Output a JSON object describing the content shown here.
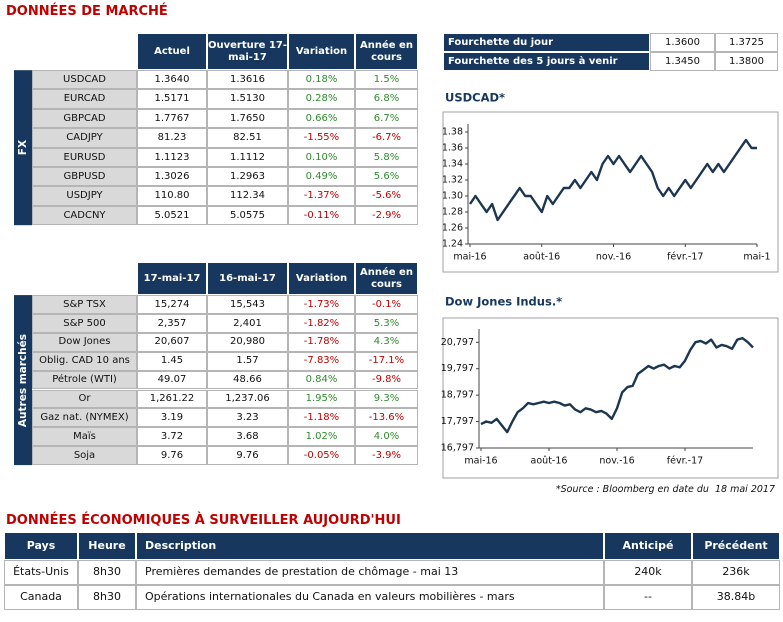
{
  "title": "DONNÉES DE MARCHÉ",
  "fx_table": {
    "side_label": "FX",
    "columns": [
      "Actuel",
      "Ouverture 17-mai-17",
      "Variation",
      "Année en cours"
    ],
    "rows": [
      [
        "USDCAD",
        "1.3640",
        "1.3616",
        "0.18%",
        "1.5%"
      ],
      [
        "EURCAD",
        "1.5171",
        "1.5130",
        "0.28%",
        "6.8%"
      ],
      [
        "GBPCAD",
        "1.7767",
        "1.7650",
        "0.66%",
        "6.7%"
      ],
      [
        "CADJPY",
        "81.23",
        "82.51",
        "-1.55%",
        "-6.7%"
      ],
      [
        "EURUSD",
        "1.1123",
        "1.1112",
        "0.10%",
        "5.8%"
      ],
      [
        "GBPUSD",
        "1.3026",
        "1.2963",
        "0.49%",
        "5.6%"
      ],
      [
        "USDJPY",
        "110.80",
        "112.34",
        "-1.37%",
        "-5.6%"
      ],
      [
        "CADCNY",
        "5.0521",
        "5.0575",
        "-0.11%",
        "-2.9%"
      ]
    ]
  },
  "markets_table": {
    "side_label": "Autres marchés",
    "columns": [
      "17-mai-17",
      "16-mai-17",
      "Variation",
      "Année en cours"
    ],
    "rows": [
      [
        "S&P TSX",
        "15,274",
        "15,543",
        "-1.73%",
        "-0.1%"
      ],
      [
        "S&P 500",
        "2,357",
        "2,401",
        "-1.82%",
        "5.3%"
      ],
      [
        "Dow Jones",
        "20,607",
        "20,980",
        "-1.78%",
        "4.3%"
      ],
      [
        "Oblig. CAD 10 ans",
        "1.45",
        "1.57",
        "-7.83%",
        "-17.1%"
      ],
      [
        "Pétrole (WTI)",
        "49.07",
        "48.66",
        "0.84%",
        "-9.8%"
      ],
      [
        "Or",
        "1,261.22",
        "1,237.06",
        "1.95%",
        "9.3%"
      ],
      [
        "Gaz nat. (NYMEX)",
        "3.19",
        "3.23",
        "-1.18%",
        "-13.6%"
      ],
      [
        "Maïs",
        "3.72",
        "3.68",
        "1.02%",
        "4.0%"
      ],
      [
        "Soja",
        "9.76",
        "9.76",
        "-0.05%",
        "-3.9%"
      ]
    ]
  },
  "range_table": {
    "rows": [
      [
        "Fourchette du jour",
        "1.3600",
        "1.3725"
      ],
      [
        "Fourchette des 5 jours à venir",
        "1.3450",
        "1.3800"
      ]
    ]
  },
  "chart_data": [
    {
      "type": "line",
      "title": "USDCAD*",
      "color": "#1c3550",
      "x": [
        0,
        1,
        2,
        3,
        4,
        5,
        6,
        7,
        8,
        9,
        10,
        11,
        12,
        13,
        14,
        15,
        16,
        17,
        18,
        19,
        20,
        21,
        22,
        23,
        24,
        25,
        26,
        27,
        28,
        29,
        30,
        31,
        32,
        33,
        34,
        35,
        36,
        37,
        38,
        39,
        40,
        41,
        42,
        43,
        44,
        45,
        46,
        47,
        48,
        49,
        50,
        51,
        52
      ],
      "values": [
        1.29,
        1.3,
        1.29,
        1.28,
        1.29,
        1.27,
        1.28,
        1.29,
        1.3,
        1.31,
        1.3,
        1.3,
        1.29,
        1.28,
        1.3,
        1.29,
        1.3,
        1.31,
        1.31,
        1.32,
        1.31,
        1.32,
        1.33,
        1.32,
        1.34,
        1.35,
        1.34,
        1.35,
        1.34,
        1.33,
        1.34,
        1.35,
        1.34,
        1.33,
        1.31,
        1.3,
        1.31,
        1.3,
        1.31,
        1.32,
        1.31,
        1.32,
        1.33,
        1.34,
        1.33,
        1.34,
        1.33,
        1.34,
        1.35,
        1.36,
        1.37,
        1.36,
        1.36
      ],
      "xlim": [
        0,
        52
      ],
      "xticks": [
        {
          "value": 0,
          "label": "mai-16"
        },
        {
          "value": 13,
          "label": "août-16"
        },
        {
          "value": 26,
          "label": "nov.-16"
        },
        {
          "value": 39,
          "label": "févr.-17"
        },
        {
          "value": 52,
          "label": "mai-1"
        }
      ],
      "ylim": [
        1.24,
        1.39
      ],
      "yticks": [
        1.24,
        1.26,
        1.28,
        {
          "value": 1.3,
          "label": "1.30"
        },
        1.32,
        1.34,
        1.36,
        1.38
      ]
    },
    {
      "type": "line",
      "title": "Dow Jones Indus.*",
      "color": "#1c3550",
      "x": [
        0,
        1,
        2,
        3,
        4,
        5,
        6,
        7,
        8,
        9,
        10,
        11,
        12,
        13,
        14,
        15,
        16,
        17,
        18,
        19,
        20,
        21,
        22,
        23,
        24,
        25,
        26,
        27,
        28,
        29,
        30,
        31,
        32,
        33,
        34,
        35,
        36,
        37,
        38,
        39,
        40,
        41,
        42,
        43,
        44,
        45,
        46,
        47,
        48,
        49,
        50,
        51,
        52
      ],
      "values": [
        17700,
        17800,
        17750,
        17900,
        17650,
        17400,
        17800,
        18150,
        18300,
        18500,
        18450,
        18500,
        18550,
        18500,
        18550,
        18500,
        18400,
        18450,
        18250,
        18150,
        18300,
        18250,
        18150,
        18200,
        18100,
        17900,
        18300,
        18900,
        19100,
        19150,
        19600,
        19750,
        19900,
        19800,
        19900,
        19950,
        19800,
        19900,
        19850,
        20100,
        20500,
        20800,
        20850,
        20750,
        20900,
        20600,
        20700,
        20650,
        20550,
        20900,
        20950,
        20800,
        20600
      ],
      "xlim": [
        0,
        52
      ],
      "xticks": [
        {
          "value": 0,
          "label": "mai-16"
        },
        {
          "value": 13,
          "label": "août-16"
        },
        {
          "value": 26,
          "label": "nov.-16"
        },
        {
          "value": 39,
          "label": "févr.-17"
        }
      ],
      "ylim": [
        16797,
        21300
      ],
      "yticks": [
        {
          "value": 16797,
          "label": "16,797"
        },
        {
          "value": 17797,
          "label": "17,797"
        },
        {
          "value": 18797,
          "label": "18,797"
        },
        {
          "value": 19797,
          "label": "19,797"
        },
        {
          "value": 20797,
          "label": "20,797"
        }
      ]
    }
  ],
  "source_note": "*Source : Bloomberg en date du  18 mai 2017",
  "econ_title": "DONNÉES ÉCONOMIQUES À SURVEILLER AUJOURD'HUI",
  "econ_table": {
    "columns": [
      "Pays",
      "Heure",
      "Description",
      "Anticipé",
      "Précédent"
    ],
    "rows": [
      [
        "États-Unis",
        "8h30",
        "Premières demandes de prestation de chômage - mai 13",
        "240k",
        "236k"
      ],
      [
        "Canada",
        "8h30",
        "Opérations internationales du Canada en valeurs mobilières - mars",
        "--",
        "38.84b"
      ]
    ]
  }
}
